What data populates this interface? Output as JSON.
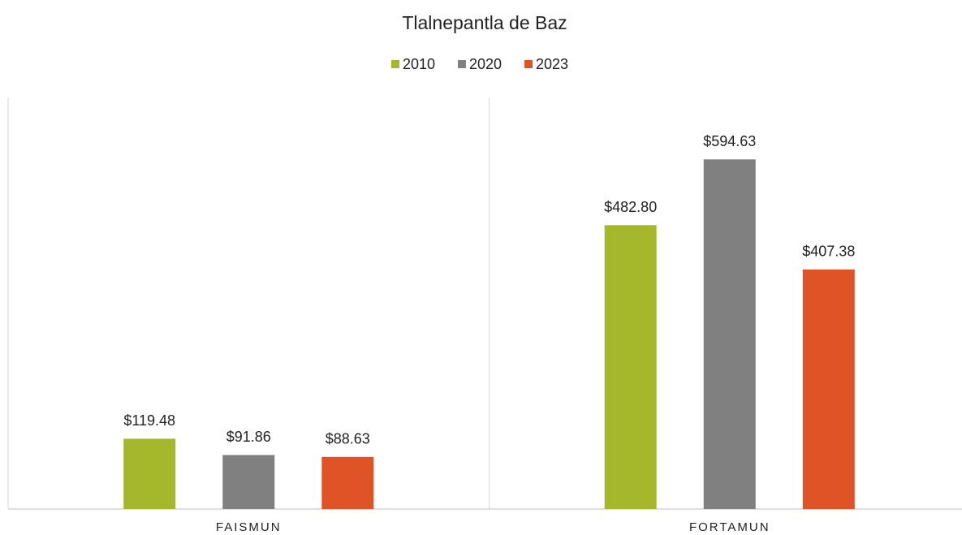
{
  "chart_data": {
    "type": "bar",
    "title": "Tlalnepantla  de Baz",
    "categories": [
      "FAISMUN",
      "FORTAMUN"
    ],
    "series": [
      {
        "name": "2010",
        "color": "#a5b82b",
        "values": [
          119.48,
          482.8
        ],
        "value_labels": [
          "$119.48",
          "$482.80"
        ]
      },
      {
        "name": "2020",
        "color": "#808080",
        "values": [
          91.86,
          594.63
        ],
        "value_labels": [
          "$91.86",
          "$594.63"
        ]
      },
      {
        "name": "2023",
        "color": "#e05327",
        "values": [
          88.63,
          407.38
        ],
        "value_labels": [
          "$88.63",
          "$407.38"
        ]
      }
    ],
    "ylim": [
      0,
      700
    ],
    "legend": "top"
  }
}
